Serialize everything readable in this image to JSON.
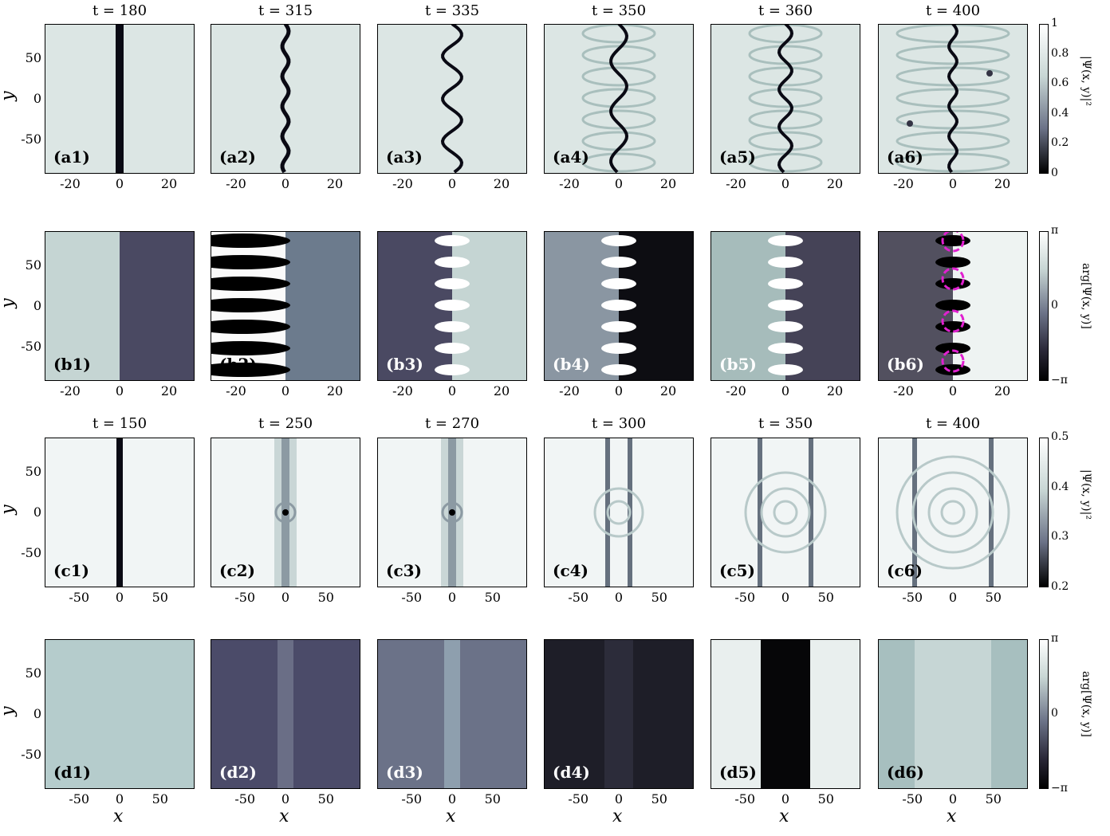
{
  "figure": {
    "rows": [
      {
        "id": "a",
        "panels": [
          {
            "label": "(a1)",
            "title": "t = 180"
          },
          {
            "label": "(a2)",
            "title": "t = 315"
          },
          {
            "label": "(a3)",
            "title": "t = 335"
          },
          {
            "label": "(a4)",
            "title": "t = 350"
          },
          {
            "label": "(a5)",
            "title": "t = 360"
          },
          {
            "label": "(a6)",
            "title": "t = 400"
          }
        ],
        "xticks": [
          "-20",
          "0",
          "20"
        ],
        "yticks": [
          "50",
          "0",
          "-50"
        ],
        "ylabel": "y",
        "colorbar": {
          "label": "|Ψ(x, y)|²",
          "ticks": [
            "1",
            "0.8",
            "0.6",
            "0.4",
            "0.2",
            "0"
          ]
        }
      },
      {
        "id": "b",
        "panels": [
          {
            "label": "(b1)"
          },
          {
            "label": "(b2)"
          },
          {
            "label": "(b3)"
          },
          {
            "label": "(b4)"
          },
          {
            "label": "(b5)"
          },
          {
            "label": "(b6)"
          }
        ],
        "xticks": [
          "-20",
          "0",
          "20"
        ],
        "yticks": [
          "50",
          "0",
          "-50"
        ],
        "ylabel": "y",
        "colorbar": {
          "label": "arg[Ψ(x, y)]",
          "ticks": [
            "π",
            "0",
            "−π"
          ]
        }
      },
      {
        "id": "c",
        "panels": [
          {
            "label": "(c1)",
            "title": "t = 150"
          },
          {
            "label": "(c2)",
            "title": "t = 250"
          },
          {
            "label": "(c3)",
            "title": "t = 270"
          },
          {
            "label": "(c4)",
            "title": "t = 300"
          },
          {
            "label": "(c5)",
            "title": "t = 350"
          },
          {
            "label": "(c6)",
            "title": "t = 400"
          }
        ],
        "xticks": [
          "-50",
          "0",
          "50"
        ],
        "yticks": [
          "50",
          "0",
          "-50"
        ],
        "ylabel": "y",
        "colorbar": {
          "label": "|Ψ(x, y)|²",
          "ticks": [
            "0.5",
            "0.4",
            "0.3",
            "0.2"
          ]
        }
      },
      {
        "id": "d",
        "panels": [
          {
            "label": "(d1)"
          },
          {
            "label": "(d2)"
          },
          {
            "label": "(d3)"
          },
          {
            "label": "(d4)"
          },
          {
            "label": "(d5)"
          },
          {
            "label": "(d6)"
          }
        ],
        "xticks": [
          "-50",
          "0",
          "50"
        ],
        "yticks": [
          "50",
          "0",
          "-50"
        ],
        "ylabel": "y",
        "xlabel": "x",
        "colorbar": {
          "label": "arg[Ψ(x, y)]",
          "ticks": [
            "π",
            "0",
            "−π"
          ]
        }
      }
    ],
    "colors": {
      "highlight_circle": "#e020d0",
      "bg_light": "#dce6e4",
      "dark": "#000000"
    }
  }
}
